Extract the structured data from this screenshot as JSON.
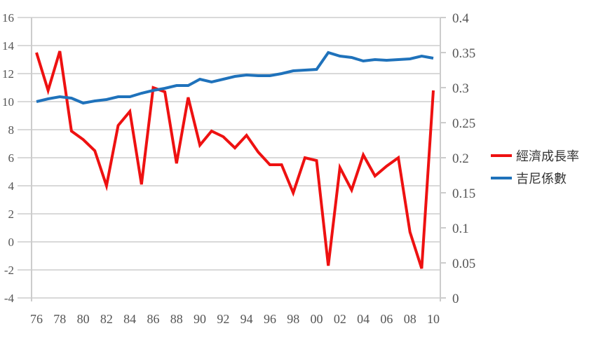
{
  "chart_data": {
    "type": "line",
    "title": "",
    "x": [
      "76",
      "77",
      "78",
      "79",
      "80",
      "81",
      "82",
      "83",
      "84",
      "85",
      "86",
      "87",
      "88",
      "89",
      "90",
      "91",
      "92",
      "93",
      "94",
      "95",
      "96",
      "97",
      "98",
      "99",
      "00",
      "01",
      "02",
      "03",
      "04",
      "05",
      "06",
      "07",
      "08",
      "09",
      "10"
    ],
    "x_tick_labels": [
      "76",
      "78",
      "80",
      "82",
      "84",
      "86",
      "88",
      "90",
      "92",
      "94",
      "96",
      "98",
      "00",
      "02",
      "04",
      "06",
      "08",
      "10"
    ],
    "y_left": {
      "min": -4,
      "max": 16,
      "step": 2,
      "tick_labels": [
        "-4",
        "-2",
        "0",
        "2",
        "4",
        "6",
        "8",
        "10",
        "12",
        "14",
        "16"
      ]
    },
    "y_right": {
      "min": 0,
      "max": 0.4,
      "step": 0.05,
      "tick_labels": [
        "0",
        "0.05",
        "0.1",
        "0.15",
        "0.2",
        "0.25",
        "0.3",
        "0.35",
        "0.4"
      ]
    },
    "grid": true,
    "legend_position": "right",
    "series": [
      {
        "name": "經濟成長率",
        "axis": "left",
        "color": "#ee1111",
        "values": [
          13.5,
          10.8,
          13.6,
          7.9,
          7.3,
          6.5,
          4.0,
          8.3,
          9.3,
          4.1,
          11.0,
          10.7,
          5.6,
          10.3,
          6.9,
          7.9,
          7.5,
          6.7,
          7.6,
          6.4,
          5.5,
          5.5,
          3.5,
          6.0,
          5.8,
          -1.7,
          5.3,
          3.7,
          6.2,
          4.7,
          5.4,
          6.0,
          0.7,
          -1.9,
          10.8
        ]
      },
      {
        "name": "吉尼係數",
        "axis": "right",
        "color": "#1f72bb",
        "values": [
          0.28,
          0.284,
          0.287,
          0.285,
          0.278,
          0.281,
          0.283,
          0.287,
          0.287,
          0.292,
          0.296,
          0.299,
          0.303,
          0.303,
          0.312,
          0.308,
          0.312,
          0.316,
          0.318,
          0.317,
          0.317,
          0.32,
          0.324,
          0.325,
          0.326,
          0.35,
          0.345,
          0.343,
          0.338,
          0.34,
          0.339,
          0.34,
          0.341,
          0.345,
          0.342
        ]
      }
    ]
  }
}
